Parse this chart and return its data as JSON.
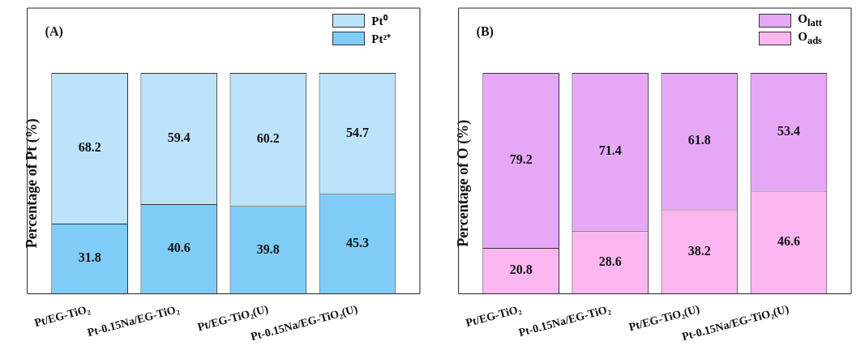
{
  "chart_data": [
    {
      "type": "bar",
      "stacked": true,
      "ylabel": "Percentage of Pt (%)",
      "annotations": [
        "(A)"
      ],
      "categories": [
        "Pt/EG-TiO₂",
        "Pt-0.15Na/EG-TiO₂",
        "Pt/EG-TiO₂(U)",
        "Pt-0.15Na/EG-TiO₂(U)"
      ],
      "series": [
        {
          "name": "Pt²⁺",
          "color": "#80ccf8",
          "values": [
            31.8,
            40.6,
            39.8,
            45.3
          ]
        },
        {
          "name": "Pt⁰",
          "color": "#bce3fa",
          "values": [
            68.2,
            59.4,
            60.2,
            54.7
          ]
        }
      ],
      "data_labels": true,
      "legend": "top right",
      "tick_labels": "x",
      "grid": false
    },
    {
      "type": "bar",
      "stacked": true,
      "ylabel": "Percentage of O (%)",
      "annotations": [
        "(B)"
      ],
      "categories": [
        "Pt/EG-TiO₂",
        "Pt-0.15Na/EG-TiO₂",
        "Pt/EG-TiO₂(U)",
        "Pt-0.15Na/EG-TiO₂(U)"
      ],
      "series": [
        {
          "name": "O$_{ads}$",
          "color": "#fcb6f0",
          "values": [
            20.8,
            28.6,
            38.2,
            46.6
          ]
        },
        {
          "name": "O$_{latt}$",
          "color": "#e6a8f6",
          "values": [
            79.2,
            71.4,
            61.8,
            53.4
          ]
        }
      ],
      "data_labels": true,
      "legend": "top right",
      "tick_labels": "x",
      "grid": false
    }
  ]
}
